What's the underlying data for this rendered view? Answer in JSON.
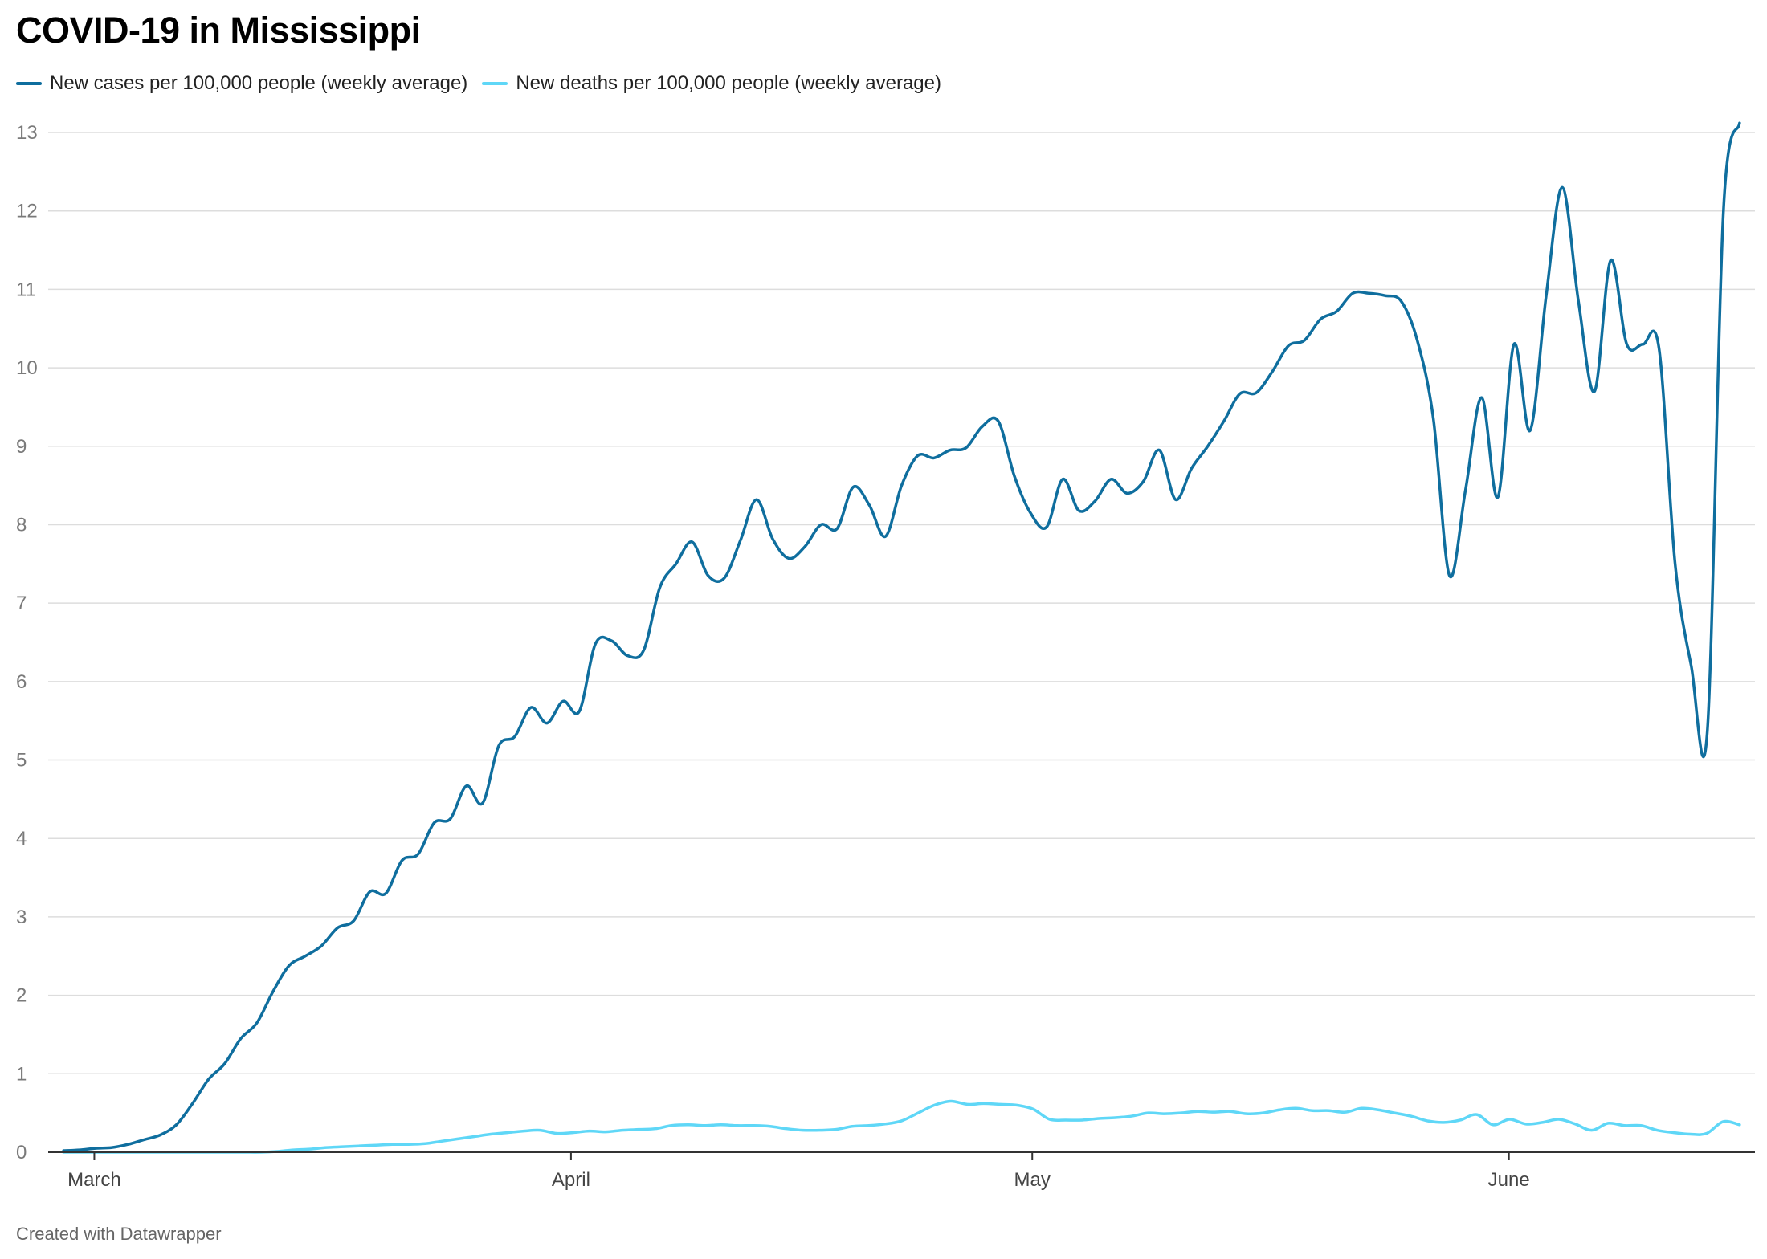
{
  "title": "COVID-19 in Mississippi",
  "footer": "Created with Datawrapper",
  "colors": {
    "cases": "#0f6e9e",
    "deaths": "#5fd7f7",
    "grid": "#dddddd",
    "axis": "#333333"
  },
  "chart_data": {
    "type": "line",
    "title": "COVID-19 in Mississippi",
    "xlabel": "",
    "ylabel": "",
    "ylim": [
      0,
      13
    ],
    "yticks": [
      0,
      1,
      2,
      3,
      4,
      5,
      6,
      7,
      8,
      9,
      10,
      11,
      12,
      13
    ],
    "xticks": [
      {
        "label": "March",
        "day": 0
      },
      {
        "label": "April",
        "day": 31
      },
      {
        "label": "May",
        "day": 61
      },
      {
        "label": "June",
        "day": 92
      }
    ],
    "grid": true,
    "legend": "top-left",
    "x_start_day": -3,
    "x_end_day": 108,
    "series": [
      {
        "name": "New cases per 100,000 people (weekly average)",
        "color": "#0f6e9e",
        "values": [
          0.02,
          0.03,
          0.05,
          0.06,
          0.1,
          0.16,
          0.22,
          0.35,
          0.62,
          0.93,
          1.13,
          1.45,
          1.65,
          2.05,
          2.38,
          2.5,
          2.63,
          2.86,
          2.95,
          3.32,
          3.3,
          3.72,
          3.8,
          4.2,
          4.25,
          4.67,
          4.45,
          5.18,
          5.3,
          5.67,
          5.47,
          5.75,
          5.62,
          6.48,
          6.52,
          6.33,
          6.4,
          7.2,
          7.5,
          7.78,
          7.35,
          7.32,
          7.8,
          8.32,
          7.82,
          7.57,
          7.72,
          8.0,
          7.95,
          8.48,
          8.25,
          7.85,
          8.5,
          8.88,
          8.85,
          8.95,
          8.98,
          9.25,
          9.32,
          8.62,
          8.15,
          7.97,
          8.58,
          8.18,
          8.3,
          8.58,
          8.4,
          8.55,
          8.95,
          8.32,
          8.72,
          9.0,
          9.32,
          9.67,
          9.68,
          9.95,
          10.28,
          10.35,
          10.62,
          10.72,
          10.95,
          10.95,
          10.92,
          10.85,
          10.35,
          9.35,
          7.35,
          8.45,
          9.62,
          8.35,
          10.3,
          9.2,
          10.92,
          12.3,
          10.85,
          9.7,
          11.37,
          10.3,
          10.3,
          10.25,
          7.5,
          6.2,
          5.37,
          12.0,
          13.12
        ]
      },
      {
        "name": "New deaths per 100,000 people (weekly average)",
        "color": "#5fd7f7",
        "values": [
          0,
          0,
          0,
          0,
          0,
          0,
          0,
          0,
          0,
          0,
          0,
          0,
          0,
          0.01,
          0.03,
          0.04,
          0.06,
          0.07,
          0.08,
          0.09,
          0.1,
          0.1,
          0.11,
          0.14,
          0.17,
          0.2,
          0.23,
          0.25,
          0.27,
          0.28,
          0.24,
          0.25,
          0.27,
          0.26,
          0.28,
          0.29,
          0.3,
          0.34,
          0.35,
          0.34,
          0.35,
          0.34,
          0.34,
          0.33,
          0.3,
          0.28,
          0.28,
          0.29,
          0.33,
          0.34,
          0.36,
          0.4,
          0.5,
          0.6,
          0.65,
          0.61,
          0.62,
          0.61,
          0.6,
          0.55,
          0.42,
          0.41,
          0.41,
          0.43,
          0.44,
          0.46,
          0.5,
          0.49,
          0.5,
          0.52,
          0.51,
          0.52,
          0.49,
          0.5,
          0.54,
          0.56,
          0.53,
          0.53,
          0.51,
          0.56,
          0.54,
          0.5,
          0.46,
          0.4,
          0.38,
          0.41,
          0.48,
          0.35,
          0.42,
          0.36,
          0.38,
          0.42,
          0.36,
          0.28,
          0.37,
          0.34,
          0.34,
          0.28,
          0.25,
          0.23,
          0.24,
          0.39,
          0.35
        ]
      }
    ]
  }
}
